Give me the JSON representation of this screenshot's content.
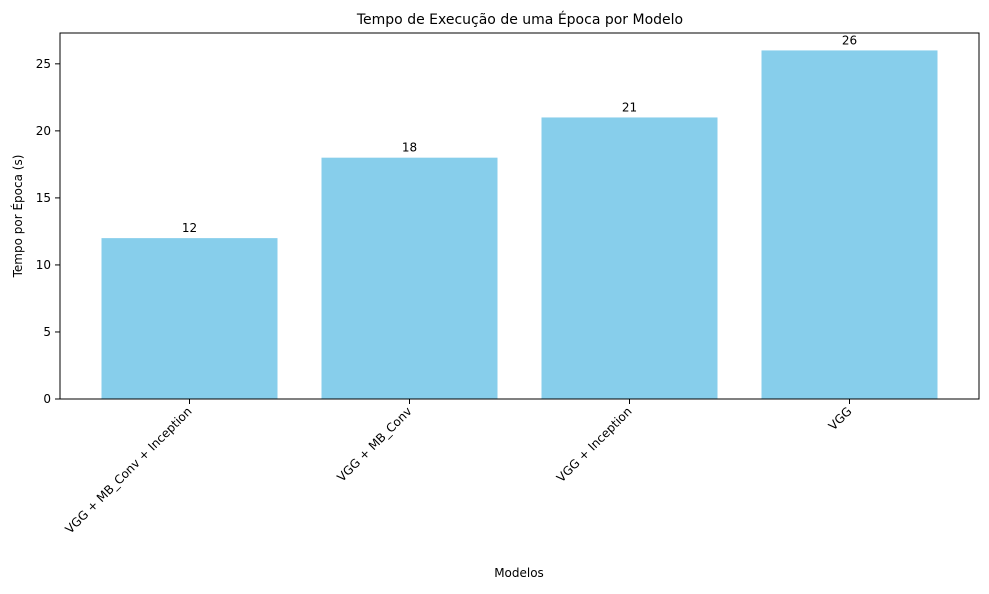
{
  "chart_data": {
    "type": "bar",
    "title": "Tempo de Execução de uma Época por Modelo",
    "xlabel": "Modelos",
    "ylabel": "Tempo por Época (s)",
    "categories": [
      "VGG + MB_Conv + Inception",
      "VGG + MB_Conv",
      "VGG + Inception",
      "VGG"
    ],
    "values": [
      12,
      18,
      21,
      26
    ],
    "data_labels": [
      "12",
      "18",
      "21",
      "26"
    ],
    "ylim": [
      0,
      27.3
    ],
    "yticks": [
      0,
      5,
      10,
      15,
      20,
      25
    ],
    "bar_color": "#87CEEB",
    "grid": false,
    "legend": "none"
  }
}
